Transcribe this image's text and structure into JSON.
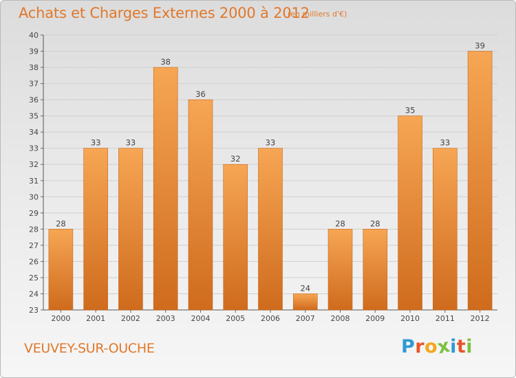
{
  "title": "Achats et Charges Externes 2000 à 2012",
  "subtitle": "(en milliers d'€)",
  "place": "VEUVEY-SUR-OUCHE",
  "logo": {
    "letters": [
      "P",
      "r",
      "o",
      "x",
      "i",
      "t",
      "i"
    ],
    "colors": [
      "#2f9ad6",
      "#e8542a",
      "#f2a81d",
      "#7cc142",
      "#2f9ad6",
      "#e8542a",
      "#7cc142"
    ]
  },
  "colors": {
    "bar": "#f19a3e",
    "bar_dark": "#cd6a1c",
    "accent": "#e0782b",
    "grid": "#cfcfcf",
    "text": "#444444"
  },
  "chart_data": {
    "type": "bar",
    "categories": [
      "2000",
      "2001",
      "2002",
      "2003",
      "2004",
      "2005",
      "2006",
      "2007",
      "2008",
      "2009",
      "2010",
      "2011",
      "2012"
    ],
    "values": [
      28,
      33,
      33,
      38,
      36,
      32,
      33,
      24,
      28,
      28,
      35,
      33,
      39
    ],
    "ylim": [
      23,
      40
    ],
    "yticks": [
      23,
      24,
      25,
      26,
      27,
      28,
      29,
      30,
      31,
      32,
      33,
      34,
      35,
      36,
      37,
      38,
      39,
      40
    ],
    "grid": true,
    "data_labels": true
  }
}
